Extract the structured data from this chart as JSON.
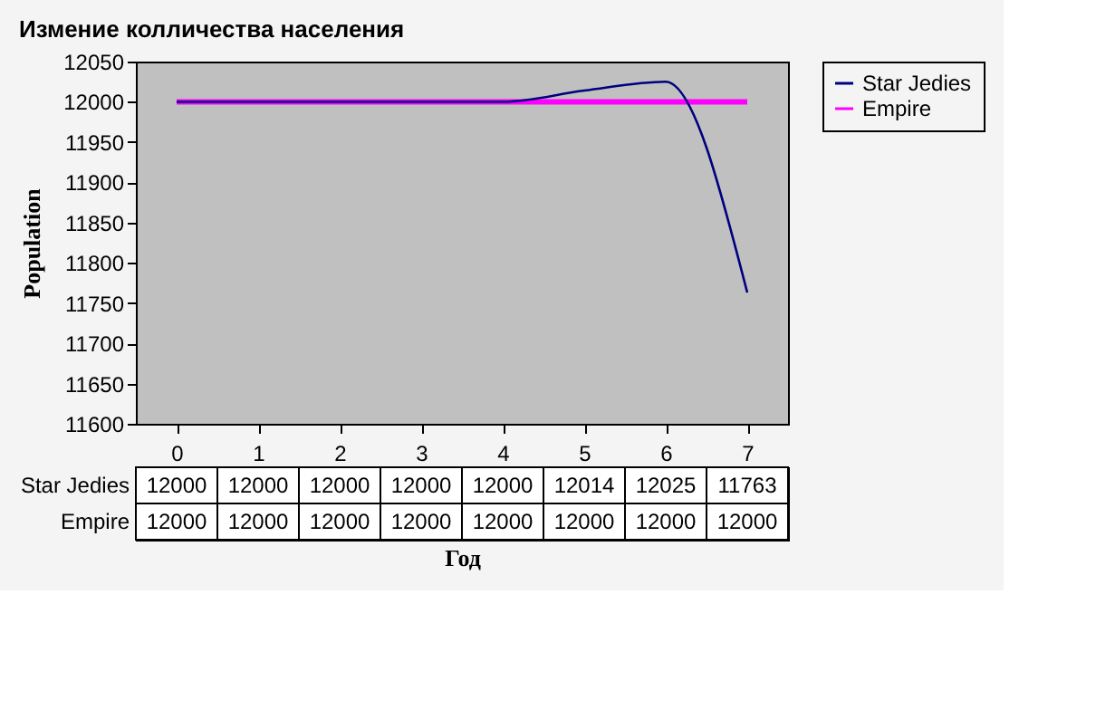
{
  "chart_data": {
    "type": "line",
    "title": "Измение колличества населения",
    "xlabel": "Год",
    "ylabel": "Population",
    "categories": [
      "0",
      "1",
      "2",
      "3",
      "4",
      "5",
      "6",
      "7"
    ],
    "series": [
      {
        "name": "Star Jedies",
        "color": "#000080",
        "values": [
          12000,
          12000,
          12000,
          12000,
          12000,
          12014,
          12025,
          11763
        ]
      },
      {
        "name": "Empire",
        "color": "#ff00ff",
        "values": [
          12000,
          12000,
          12000,
          12000,
          12000,
          12000,
          12000,
          12000
        ]
      }
    ],
    "ylim": [
      11600,
      12050
    ],
    "yticks": [
      11600,
      11650,
      11700,
      11750,
      11800,
      11850,
      11900,
      11950,
      12000,
      12050
    ],
    "grid": false,
    "legend": "right",
    "data_labels": true,
    "marker": "none",
    "line_style": "solid"
  }
}
